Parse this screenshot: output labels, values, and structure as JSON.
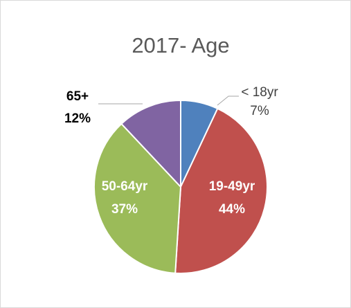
{
  "chart_data": {
    "type": "pie",
    "title": "2017- Age",
    "categories": [
      "< 18yr",
      "19-49yr",
      "50-64yr",
      "65+"
    ],
    "values": [
      7,
      44,
      37,
      12
    ],
    "value_labels": [
      "7%",
      "44%",
      "37%",
      "12%"
    ],
    "colors": [
      "#4f81bd",
      "#c0504d",
      "#9bbb59",
      "#8064a2"
    ]
  }
}
